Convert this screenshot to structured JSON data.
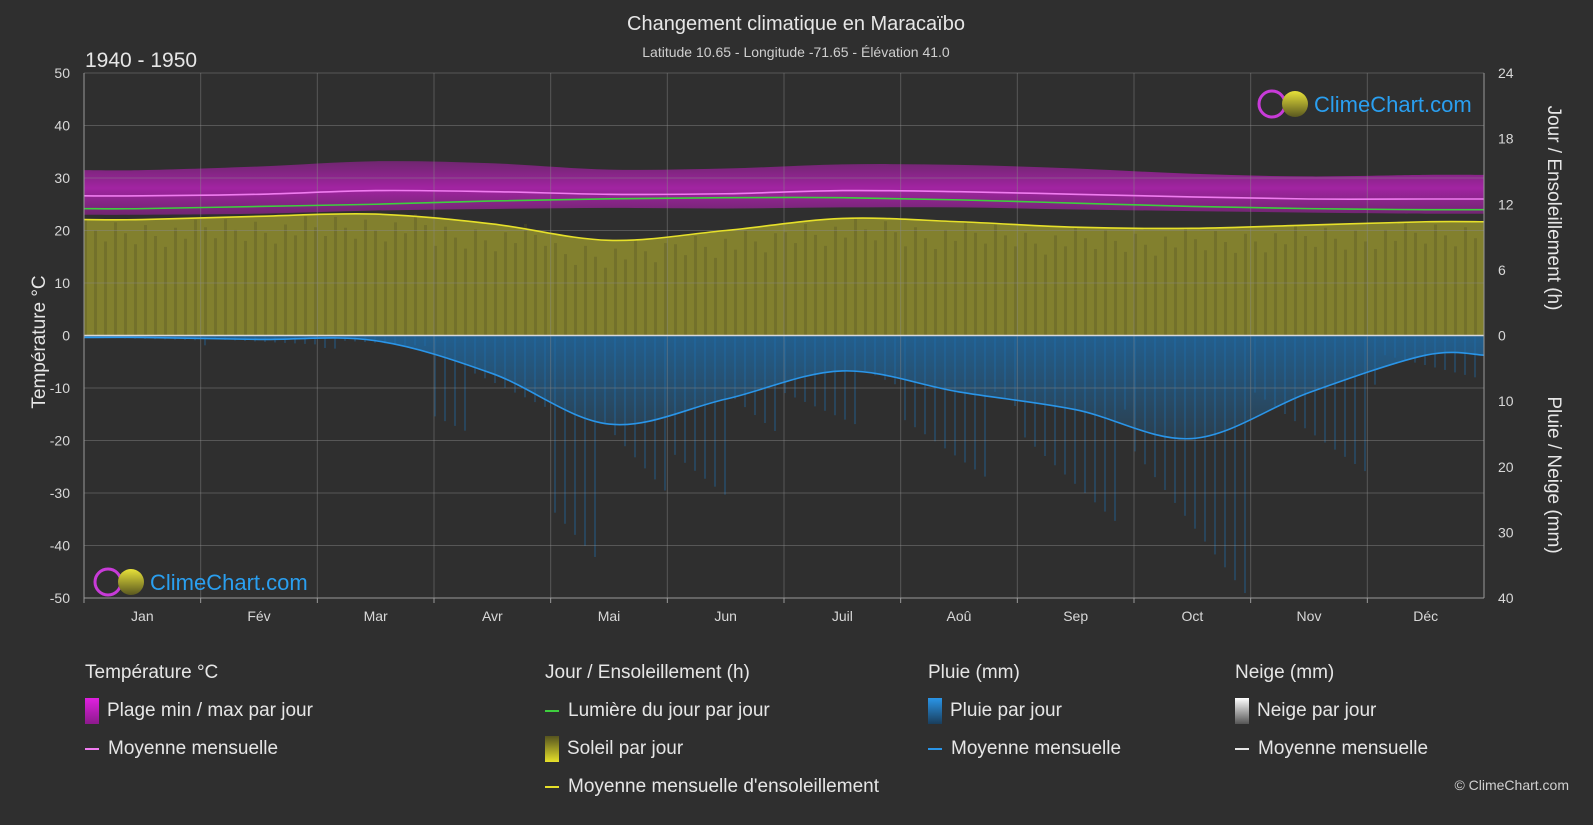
{
  "header": {
    "title": "Changement climatique en Maracaïbo",
    "subtitle": "Latitude 10.65 - Longitude -71.65 - Élévation 41.0",
    "period": "1940 - 1950"
  },
  "brand": {
    "name": "ClimeChart.com",
    "copyright": "© ClimeChart.com"
  },
  "chart_data": {
    "type": "area",
    "categories": [
      "Jan",
      "Fév",
      "Mar",
      "Avr",
      "Mai",
      "Jun",
      "Juil",
      "Aoû",
      "Sep",
      "Oct",
      "Nov",
      "Déc"
    ],
    "axes": {
      "left": {
        "label": "Température °C",
        "range": [
          -50,
          50
        ],
        "ticks": [
          50,
          40,
          30,
          20,
          10,
          0,
          -10,
          -20,
          -30,
          -40,
          -50
        ]
      },
      "right_top": {
        "label": "Jour / Ensoleillement (h)",
        "range": [
          0,
          24
        ],
        "ticks": [
          24,
          18,
          12,
          6,
          0
        ]
      },
      "right_bottom": {
        "label": "Pluie / Neige (mm)",
        "range": [
          0,
          40
        ],
        "ticks": [
          0,
          10,
          20,
          30,
          40
        ]
      }
    },
    "grid": true,
    "series": [
      {
        "name": "Moyenne mensuelle",
        "group": "temperature",
        "unit": "°C",
        "values": [
          26.6,
          26.9,
          27.6,
          27.4,
          26.9,
          27.0,
          27.6,
          27.4,
          26.9,
          26.4,
          26.0,
          26.0
        ]
      },
      {
        "name": "Plage min / max par jour (min)",
        "group": "temperature",
        "unit": "°C",
        "values": [
          23.0,
          23.2,
          23.8,
          24.1,
          24.3,
          24.2,
          24.4,
          24.4,
          24.0,
          23.7,
          23.4,
          23.2
        ]
      },
      {
        "name": "Plage min / max par jour (max)",
        "group": "temperature",
        "unit": "°C",
        "values": [
          31.5,
          32.2,
          33.2,
          32.8,
          31.6,
          31.8,
          32.6,
          32.5,
          31.8,
          30.8,
          30.3,
          30.6
        ]
      },
      {
        "name": "Lumière du jour par jour",
        "group": "daylight",
        "unit": "h",
        "values": [
          11.6,
          11.8,
          12.0,
          12.3,
          12.5,
          12.6,
          12.6,
          12.4,
          12.1,
          11.8,
          11.6,
          11.5
        ]
      },
      {
        "name": "Moyenne mensuelle d'ensoleillement",
        "group": "daylight",
        "unit": "h",
        "values": [
          10.6,
          10.9,
          11.1,
          10.2,
          8.7,
          9.6,
          10.7,
          10.4,
          9.9,
          9.8,
          10.1,
          10.4
        ]
      },
      {
        "name": "Moyenne mensuelle",
        "group": "rain",
        "unit": "mm",
        "values": [
          0.3,
          0.6,
          0.8,
          5.8,
          13.5,
          9.7,
          5.4,
          8.6,
          11.3,
          15.7,
          8.7,
          3.0
        ]
      },
      {
        "name": "Moyenne mensuelle",
        "group": "snow",
        "unit": "mm",
        "values": [
          0,
          0,
          0,
          0,
          0,
          0,
          0,
          0,
          0,
          0,
          0,
          0
        ]
      }
    ]
  },
  "legend": {
    "temperature": {
      "title": "Température °C",
      "range_label": "Plage min / max par jour",
      "mean_label": "Moyenne mensuelle"
    },
    "sun": {
      "title": "Jour / Ensoleillement (h)",
      "daylight_label": "Lumière du jour par jour",
      "sun_label": "Soleil par jour",
      "sun_mean_label": "Moyenne mensuelle d'ensoleillement"
    },
    "rain": {
      "title": "Pluie (mm)",
      "rain_label": "Pluie par jour",
      "mean_label": "Moyenne mensuelle"
    },
    "snow": {
      "title": "Neige (mm)",
      "snow_label": "Neige par jour",
      "mean_label": "Moyenne mensuelle"
    }
  },
  "colors": {
    "temp_range": "#d81fd8",
    "temp_mean": "#f07cf0",
    "daylight": "#3ecf3e",
    "sun_area": "#8c8a2f",
    "sun_mean": "#e6e02a",
    "rain": "#1e6fae",
    "rain_mean": "#2a95e8",
    "snow": "#cfcfcf"
  }
}
